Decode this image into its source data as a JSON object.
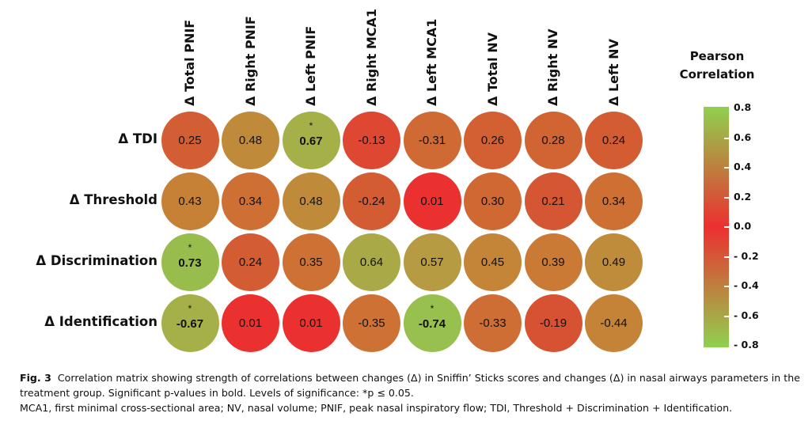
{
  "chart_data": {
    "type": "heatmap",
    "legend_title_line1": "Pearson",
    "legend_title_line2": "Correlation",
    "columns": [
      "Δ Total PNIF",
      "Δ Right PNIF",
      "Δ Left PNIF",
      "Δ Right MCA1",
      "Δ Left MCA1",
      "Δ Total NV",
      "Δ Right NV",
      "Δ Left NV"
    ],
    "rows": [
      "Δ TDI",
      "Δ Threshold",
      "Δ Discrimination",
      "Δ Identification"
    ],
    "values": [
      [
        0.25,
        0.48,
        0.67,
        -0.13,
        -0.31,
        0.26,
        0.28,
        0.24
      ],
      [
        0.43,
        0.34,
        0.48,
        -0.24,
        0.01,
        0.3,
        0.21,
        0.34
      ],
      [
        0.73,
        0.24,
        0.35,
        0.64,
        0.57,
        0.45,
        0.39,
        0.49
      ],
      [
        -0.67,
        0.01,
        0.01,
        -0.35,
        -0.74,
        -0.33,
        -0.19,
        -0.44
      ]
    ],
    "value_labels": [
      [
        "0.25",
        "0.48",
        "0.67",
        "-0.13",
        "-0.31",
        "0.26",
        "0.28",
        "0.24"
      ],
      [
        "0.43",
        "0.34",
        "0.48",
        "-0.24",
        "0.01",
        "0.30",
        "0.21",
        "0.34"
      ],
      [
        "0.73",
        "0.24",
        "0.35",
        "0.64",
        "0.57",
        "0.45",
        "0.39",
        "0.49"
      ],
      [
        "-0.67",
        "0.01",
        "0.01",
        "-0.35",
        "-0.74",
        "-0.33",
        "-0.19",
        "-0.44"
      ]
    ],
    "significant": [
      [
        false,
        false,
        true,
        false,
        false,
        false,
        false,
        false
      ],
      [
        false,
        false,
        false,
        false,
        false,
        false,
        false,
        false
      ],
      [
        true,
        false,
        false,
        false,
        false,
        false,
        false,
        false
      ],
      [
        true,
        false,
        false,
        false,
        true,
        false,
        false,
        false
      ]
    ],
    "significance_marker": "*",
    "colorbar_range": [
      -0.8,
      0.8
    ],
    "colorbar_ticks": [
      "0.8",
      "0.6",
      "0.4",
      "0.2",
      "0.0",
      "- 0.2",
      "- 0.4",
      "- 0.6",
      "- 0.8"
    ],
    "colors": {
      "zero": "#ec2f2f",
      "extreme": "#8fd14f",
      "mid": "#c9862f"
    }
  },
  "caption": {
    "label": "Fig. 3",
    "line1": "Correlation matrix showing strength of correlations between changes (Δ) in Sniffin’ Sticks scores and changes (Δ) in nasal airways parameters in the treatment group. Significant p-values in bold. Levels of significance: *p ≤ 0.05.",
    "line2": "MCA1, first minimal cross-sectional area; NV, nasal volume; PNIF, peak nasal inspiratory flow; TDI, Threshold + Discrimination + Identification."
  }
}
